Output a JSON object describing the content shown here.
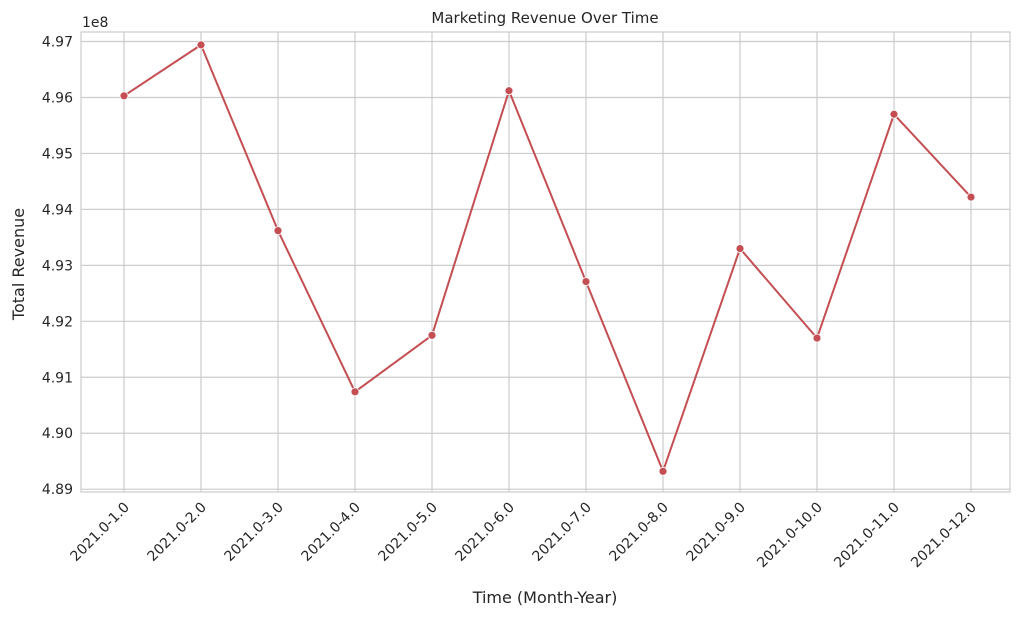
{
  "chart_data": {
    "type": "line",
    "title": "Marketing Revenue Over Time",
    "xlabel": "Time (Month-Year)",
    "ylabel": "Total Revenue",
    "y_offset_label": "1e8",
    "categories": [
      "2021.0-1.0",
      "2021.0-2.0",
      "2021.0-3.0",
      "2021.0-4.0",
      "2021.0-5.0",
      "2021.0-6.0",
      "2021.0-7.0",
      "2021.0-8.0",
      "2021.0-9.0",
      "2021.0-10.0",
      "2021.0-11.0",
      "2021.0-12.0"
    ],
    "y_scale_factor": 100000000,
    "values": [
      4.9603,
      4.9694,
      4.9362,
      4.9074,
      4.9175,
      4.9612,
      4.9271,
      4.8932,
      4.933,
      4.917,
      4.957,
      4.9422
    ],
    "y_ticks": [
      4.89,
      4.9,
      4.91,
      4.92,
      4.93,
      4.94,
      4.95,
      4.96,
      4.97
    ],
    "y_tick_labels": [
      "4.89",
      "4.90",
      "4.91",
      "4.92",
      "4.93",
      "4.94",
      "4.95",
      "4.96",
      "4.97"
    ],
    "ylim": [
      4.8895,
      4.9717
    ],
    "grid": true,
    "line_color": "#c44e52",
    "grid_color": "#cccccc",
    "background": "#ffffff"
  }
}
